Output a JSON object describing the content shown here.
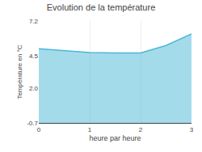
{
  "chart_data": {
    "type": "area",
    "title": "Evolution de la température",
    "xlabel": "heure par heure",
    "ylabel": "Température en °C",
    "x": [
      0,
      0.5,
      1,
      1.5,
      2,
      2.5,
      3
    ],
    "values": [
      5.05,
      4.88,
      4.75,
      4.72,
      4.72,
      5.3,
      6.2
    ],
    "color": "#4ab8d8",
    "xlim": [
      0,
      3
    ],
    "ylim": [
      -0.7,
      7.2
    ],
    "xticks": [
      0,
      1,
      2,
      3
    ],
    "yticks": [
      -0.7,
      {
        "value": 2.0,
        "label": "2.0"
      },
      4.5,
      7.2
    ],
    "grid": "x"
  }
}
